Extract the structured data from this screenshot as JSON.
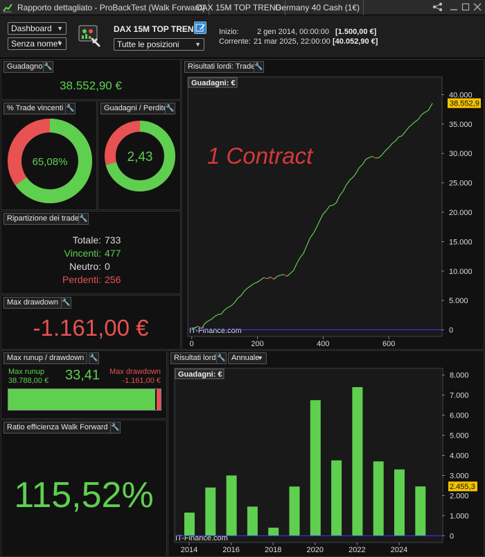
{
  "tabs": [
    {
      "label": "Rapporto dettagliato - ProBackTest (Walk Forward)"
    },
    {
      "label": "DAX 15M TOP TREND"
    },
    {
      "label": "Germany 40 Cash (1€)"
    }
  ],
  "header": {
    "view_select": "Dashboard",
    "name_select": "Senza nome*",
    "strategy_name": "DAX 15M TOP TREND",
    "positions_select": "Tutte le posizioni",
    "start_label": "Inizio:",
    "start_date": "2 gen 2014, 00:00:00",
    "start_value": "[1.500,00 €]",
    "current_label": "Corrente:",
    "current_date": "21 mar 2025, 22:00:00",
    "current_value": "[40.052,90 €]"
  },
  "gain": {
    "title": "Guadagno",
    "value": "38.552,90 €"
  },
  "win_rate": {
    "title": "% Trade vincenti",
    "value": "65,08%",
    "fraction": 0.6508
  },
  "gain_loss": {
    "title": "Guadagni / Perdite",
    "value": "2,43",
    "fraction": 0.708
  },
  "distribution": {
    "title": "Ripartizione dei trade",
    "total_label": "Totale:",
    "total": "733",
    "win_label": "Vincenti:",
    "win": "477",
    "neutral_label": "Neutro:",
    "neutral": "0",
    "loss_label": "Perdenti:",
    "loss": "256"
  },
  "max_drawdown": {
    "title": "Max drawdown",
    "value": "-1.161,00 €"
  },
  "runup": {
    "title": "Max runup / drawdown",
    "runup_label": "Max runup",
    "runup_value": "38.788,00 €",
    "ratio": "33,41",
    "drawdown_label": "Max drawdown",
    "drawdown_value": "-1.161,00 €",
    "runup_fraction": 0.971
  },
  "efficiency": {
    "title": "Ratio efficienza Walk Forward",
    "value": "115,52%"
  },
  "trade_chart": {
    "title": "Risultati lordi: Trade",
    "inner_label": "Guadagni: €",
    "annotation": "1 Contract",
    "watermark": "IT-Finance.com",
    "last_label": "38.552,9",
    "colors": {
      "up": "#5fcf50",
      "down": "#e85252",
      "zero": "#3a3aff"
    }
  },
  "annual_chart": {
    "title": "Risultati lordi",
    "period_select": "Annuale",
    "inner_label": "Guadagni: €",
    "watermark": "IT-Finance.com",
    "last_label": "2.455,3"
  },
  "chart_data": [
    {
      "type": "line",
      "title": "Risultati lordi: Trade",
      "ylabel": "Guadagni: €",
      "xlabel": "",
      "xlim": [
        -10,
        760
      ],
      "ylim": [
        -1000,
        41000
      ],
      "x_ticks": [
        {
          "v": 0,
          "label": "0"
        },
        {
          "v": 200,
          "label": "200"
        },
        {
          "v": 400,
          "label": "400"
        },
        {
          "v": 600,
          "label": "600"
        }
      ],
      "y_ticks": [
        {
          "v": 0,
          "label": "0"
        },
        {
          "v": 5000,
          "label": "5.000"
        },
        {
          "v": 10000,
          "label": "10.000"
        },
        {
          "v": 15000,
          "label": "15.000"
        },
        {
          "v": 20000,
          "label": "20.000"
        },
        {
          "v": 25000,
          "label": "25.000"
        },
        {
          "v": 30000,
          "label": "30.000"
        },
        {
          "v": 35000,
          "label": "35.000"
        },
        {
          "v": 40000,
          "label": "40.000"
        }
      ],
      "x": [
        0,
        10,
        20,
        30,
        40,
        50,
        60,
        70,
        80,
        90,
        100,
        110,
        120,
        130,
        140,
        150,
        160,
        170,
        180,
        190,
        200,
        210,
        220,
        230,
        240,
        250,
        260,
        270,
        280,
        290,
        300,
        310,
        320,
        330,
        340,
        350,
        360,
        370,
        380,
        390,
        400,
        410,
        420,
        430,
        440,
        450,
        460,
        470,
        480,
        490,
        500,
        510,
        520,
        530,
        540,
        550,
        560,
        570,
        580,
        590,
        600,
        610,
        620,
        630,
        640,
        650,
        660,
        670,
        680,
        690,
        700,
        710,
        720,
        733
      ],
      "values": [
        0,
        400,
        600,
        200,
        1100,
        1500,
        1800,
        2300,
        2600,
        2700,
        3400,
        3800,
        4100,
        4600,
        5400,
        5800,
        6600,
        7100,
        7500,
        7900,
        8100,
        8500,
        8900,
        8700,
        9000,
        8600,
        9100,
        9300,
        9400,
        9100,
        9600,
        10100,
        11300,
        12300,
        13000,
        14300,
        15600,
        16400,
        17400,
        18600,
        19700,
        20300,
        21100,
        21200,
        21600,
        22800,
        23500,
        24600,
        25400,
        25900,
        26600,
        27600,
        28100,
        29000,
        29300,
        29500,
        29200,
        29300,
        29800,
        30500,
        31000,
        31700,
        32100,
        32800,
        33000,
        33700,
        34400,
        34900,
        35400,
        35800,
        36600,
        37000,
        37300,
        38553
      ]
    },
    {
      "type": "bar",
      "title": "Risultati lordi",
      "ylabel": "Guadagni: €",
      "xlabel": "",
      "categories": [
        "2014",
        "2015",
        "2016",
        "2017",
        "2018",
        "2019",
        "2020",
        "2021",
        "2022",
        "2023",
        "2024",
        "2025"
      ],
      "values": [
        1150,
        2400,
        3000,
        1450,
        400,
        2450,
        6750,
        3750,
        7400,
        3700,
        3300,
        2455
      ],
      "ylim": [
        -300,
        8300
      ],
      "x_ticks": [
        {
          "i": 0,
          "label": "2014"
        },
        {
          "i": 2,
          "label": "2016"
        },
        {
          "i": 4,
          "label": "2018"
        },
        {
          "i": 6,
          "label": "2020"
        },
        {
          "i": 8,
          "label": "2022"
        },
        {
          "i": 10,
          "label": "2024"
        }
      ],
      "y_ticks": [
        {
          "v": 0,
          "label": "0"
        },
        {
          "v": 1000,
          "label": "1.000"
        },
        {
          "v": 2000,
          "label": "2.000"
        },
        {
          "v": 3000,
          "label": "3.000"
        },
        {
          "v": 4000,
          "label": "4.000"
        },
        {
          "v": 5000,
          "label": "5.000"
        },
        {
          "v": 6000,
          "label": "6.000"
        },
        {
          "v": 7000,
          "label": "7.000"
        },
        {
          "v": 8000,
          "label": "8.000"
        }
      ]
    }
  ]
}
